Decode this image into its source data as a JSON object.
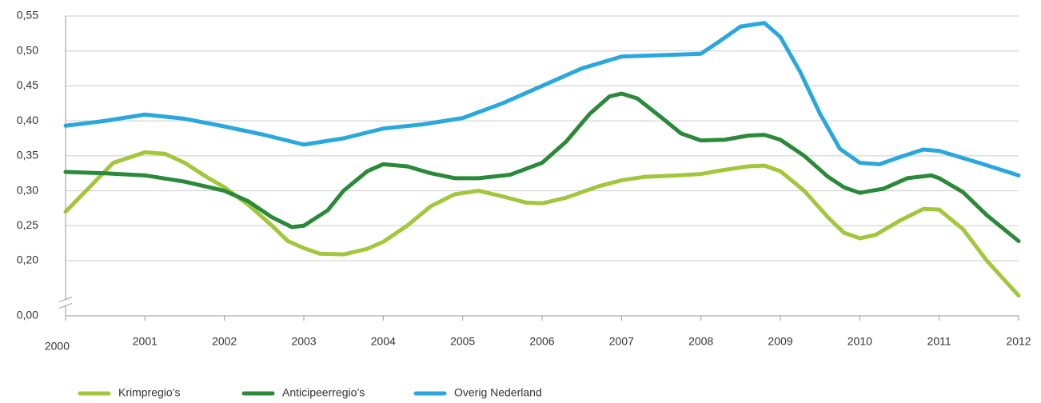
{
  "chart_data": {
    "type": "line",
    "xlim": [
      2000,
      2012
    ],
    "xticks": [
      2000,
      2001,
      2002,
      2003,
      2004,
      2005,
      2006,
      2007,
      2008,
      2009,
      2010,
      2011,
      2012
    ],
    "ylim": [
      0,
      0.55
    ],
    "axis_break": [
      0,
      0.14
    ],
    "yticks": [
      {
        "value": 0,
        "label": "0,00"
      },
      {
        "value": 0.2,
        "label": "0,20"
      },
      {
        "value": 0.25,
        "label": "0,25"
      },
      {
        "value": 0.3,
        "label": "0,30"
      },
      {
        "value": 0.35,
        "label": "0,35"
      },
      {
        "value": 0.4,
        "label": "0,40"
      },
      {
        "value": 0.45,
        "label": "0,45"
      },
      {
        "value": 0.5,
        "label": "0,50"
      },
      {
        "value": 0.55,
        "label": "0,55"
      }
    ],
    "grid": true,
    "legend": "bottom",
    "series": [
      {
        "name": "Krimpregio’s",
        "color": "#a2c73b",
        "x": [
          2000,
          2000.3,
          2000.6,
          2001,
          2001.25,
          2001.5,
          2001.8,
          2002,
          2002.3,
          2002.6,
          2002.8,
          2003,
          2003.2,
          2003.5,
          2003.8,
          2004,
          2004.3,
          2004.6,
          2004.9,
          2005.2,
          2005.5,
          2005.8,
          2006,
          2006.3,
          2006.7,
          2007,
          2007.3,
          2007.7,
          2008,
          2008.3,
          2008.6,
          2008.8,
          2009,
          2009.3,
          2009.6,
          2009.8,
          2010,
          2010.2,
          2010.5,
          2010.8,
          2011,
          2011.3,
          2011.6,
          2012
        ],
        "values": [
          0.27,
          0.305,
          0.34,
          0.355,
          0.353,
          0.34,
          0.318,
          0.305,
          0.28,
          0.25,
          0.228,
          0.218,
          0.21,
          0.209,
          0.217,
          0.227,
          0.25,
          0.278,
          0.295,
          0.3,
          0.292,
          0.283,
          0.282,
          0.29,
          0.306,
          0.315,
          0.32,
          0.322,
          0.324,
          0.33,
          0.335,
          0.336,
          0.328,
          0.3,
          0.262,
          0.24,
          0.232,
          0.237,
          0.257,
          0.274,
          0.273,
          0.245,
          0.2,
          0.15
        ]
      },
      {
        "name": "Anticipeerregio’s",
        "color": "#2a8a3a",
        "x": [
          2000,
          2000.5,
          2001,
          2001.5,
          2002,
          2002.3,
          2002.6,
          2002.85,
          2003,
          2003.3,
          2003.5,
          2003.8,
          2004,
          2004.3,
          2004.6,
          2004.9,
          2005.2,
          2005.6,
          2006,
          2006.3,
          2006.6,
          2006.85,
          2007,
          2007.2,
          2007.5,
          2007.75,
          2008,
          2008.3,
          2008.6,
          2008.8,
          2009,
          2009.3,
          2009.6,
          2009.8,
          2010,
          2010.3,
          2010.6,
          2010.9,
          2011,
          2011.3,
          2011.6,
          2012
        ],
        "values": [
          0.327,
          0.325,
          0.322,
          0.313,
          0.3,
          0.285,
          0.262,
          0.248,
          0.25,
          0.272,
          0.3,
          0.328,
          0.338,
          0.335,
          0.325,
          0.318,
          0.318,
          0.323,
          0.34,
          0.37,
          0.41,
          0.435,
          0.439,
          0.432,
          0.405,
          0.382,
          0.372,
          0.373,
          0.379,
          0.38,
          0.373,
          0.35,
          0.32,
          0.305,
          0.297,
          0.303,
          0.318,
          0.322,
          0.318,
          0.298,
          0.265,
          0.228
        ]
      },
      {
        "name": "Overig Nederland",
        "color": "#2aa8de",
        "x": [
          2000,
          2000.5,
          2001,
          2001.5,
          2002,
          2002.5,
          2003,
          2003.5,
          2004,
          2004.5,
          2005,
          2005.5,
          2006,
          2006.5,
          2007,
          2007.5,
          2008,
          2008.25,
          2008.5,
          2008.8,
          2009,
          2009.25,
          2009.5,
          2009.75,
          2010,
          2010.25,
          2010.5,
          2010.8,
          2011,
          2011.5,
          2012
        ],
        "values": [
          0.393,
          0.4,
          0.409,
          0.403,
          0.392,
          0.38,
          0.366,
          0.375,
          0.389,
          0.395,
          0.404,
          0.425,
          0.45,
          0.475,
          0.492,
          0.494,
          0.496,
          0.515,
          0.535,
          0.54,
          0.52,
          0.47,
          0.41,
          0.36,
          0.34,
          0.338,
          0.348,
          0.359,
          0.357,
          0.34,
          0.322
        ]
      }
    ]
  }
}
